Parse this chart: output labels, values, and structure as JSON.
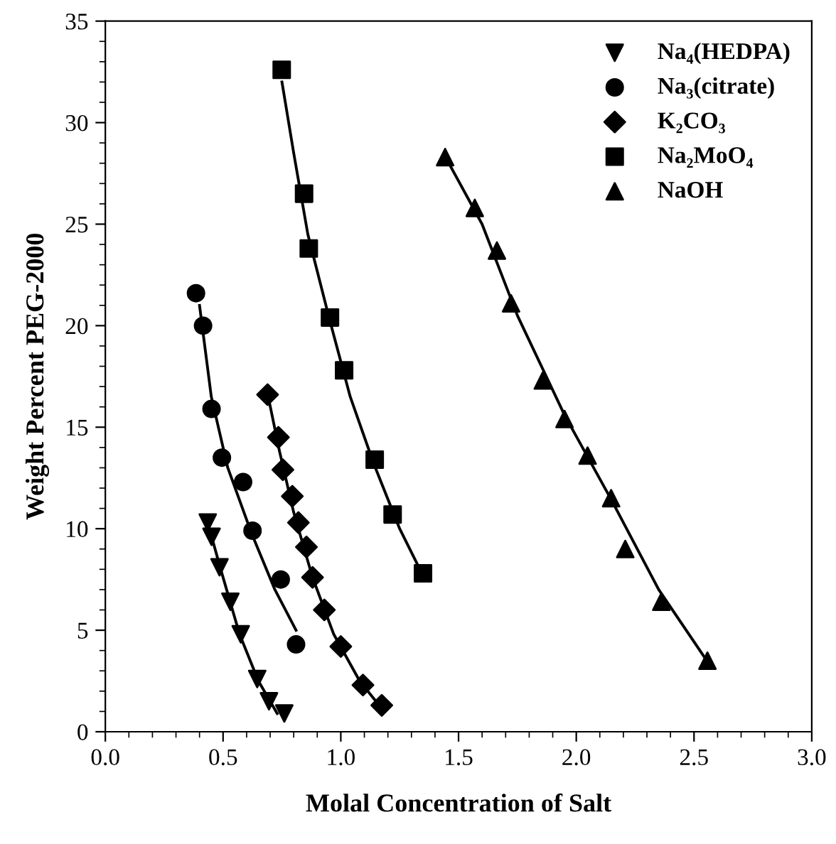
{
  "chart_data": {
    "type": "scatter",
    "xlabel": "Molal Concentration of Salt",
    "ylabel": "Weight Percent PEG-2000",
    "xlim": [
      0,
      3.0
    ],
    "ylim": [
      0,
      35
    ],
    "xticks": [
      {
        "value": 0,
        "label": "0.0"
      },
      0.5,
      {
        "value": 1,
        "label": "1.0"
      },
      1.5,
      {
        "value": 2,
        "label": "2.0"
      },
      2.5,
      {
        "value": 3,
        "label": "3.0"
      }
    ],
    "yticks": [
      0,
      5,
      10,
      15,
      20,
      25,
      30,
      35
    ],
    "grid": false,
    "legend": "top right",
    "series": [
      {
        "name": "Na₄(HEDPA)",
        "marker": "triangle_down",
        "color": "#000000",
        "x": [
          0.435,
          0.451,
          0.485,
          0.531,
          0.575,
          0.645,
          0.695,
          0.76
        ],
        "values": [
          10.3,
          9.6,
          8.1,
          6.4,
          4.8,
          2.6,
          1.5,
          0.9
        ]
      },
      {
        "name": "Na₃(citrate)",
        "marker": "circle",
        "color": "#000000",
        "x": [
          0.385,
          0.415,
          0.451,
          0.495,
          0.585,
          0.625,
          0.745,
          0.81
        ],
        "values": [
          21.6,
          20.0,
          15.9,
          13.5,
          12.3,
          9.9,
          7.5,
          4.3
        ]
      },
      {
        "name": "K₂CO₃",
        "marker": "diamond",
        "color": "#000000",
        "x": [
          0.689,
          0.735,
          0.754,
          0.794,
          0.82,
          0.854,
          0.88,
          0.93,
          1.0,
          1.094,
          1.174
        ],
        "values": [
          16.6,
          14.5,
          12.9,
          11.6,
          10.3,
          9.1,
          7.6,
          6.0,
          4.2,
          2.3,
          1.3
        ]
      },
      {
        "name": "Na₂MoO₄",
        "marker": "square",
        "color": "#000000",
        "x": [
          0.749,
          0.844,
          0.864,
          0.954,
          1.014,
          1.144,
          1.22,
          1.349
        ],
        "values": [
          32.6,
          26.5,
          23.8,
          20.4,
          17.8,
          13.4,
          10.7,
          7.8
        ]
      },
      {
        "name": "NaOH",
        "marker": "triangle",
        "color": "#000000",
        "x": [
          1.443,
          1.569,
          1.663,
          1.723,
          1.858,
          1.95,
          2.048,
          2.148,
          2.208,
          2.361,
          2.557
        ],
        "values": [
          28.3,
          25.8,
          23.7,
          21.1,
          17.3,
          15.4,
          13.6,
          11.5,
          9.0,
          6.4,
          3.5
        ]
      },
      {
        "type": "line",
        "color": "#000000",
        "line_style": "solid",
        "x": [
          0.43,
          0.49,
          0.57,
          0.65,
          0.73
        ],
        "values": [
          10.5,
          8.0,
          4.8,
          2.5,
          0.9
        ]
      },
      {
        "type": "line",
        "color": "#000000",
        "line_style": "solid",
        "x": [
          0.4,
          0.45,
          0.52,
          0.62,
          0.72,
          0.81
        ],
        "values": [
          21.0,
          16.5,
          13.0,
          9.8,
          7.0,
          5.0
        ]
      },
      {
        "type": "line",
        "color": "#000000",
        "line_style": "solid",
        "x": [
          0.69,
          0.74,
          0.8,
          0.88,
          0.97,
          1.08,
          1.17
        ],
        "values": [
          16.6,
          13.8,
          10.8,
          7.6,
          4.8,
          2.5,
          1.2
        ]
      },
      {
        "type": "line",
        "color": "#000000",
        "line_style": "solid",
        "x": [
          0.75,
          0.8,
          0.86,
          0.95,
          1.04,
          1.14,
          1.25,
          1.34
        ],
        "values": [
          32.0,
          28.5,
          24.5,
          20.4,
          16.5,
          13.2,
          10.0,
          7.9
        ]
      },
      {
        "type": "line",
        "color": "#000000",
        "line_style": "solid",
        "x": [
          1.44,
          1.6,
          1.75,
          1.95,
          2.15,
          2.35,
          2.56
        ],
        "values": [
          28.4,
          25.0,
          20.5,
          15.6,
          11.4,
          7.0,
          3.4
        ]
      }
    ]
  }
}
